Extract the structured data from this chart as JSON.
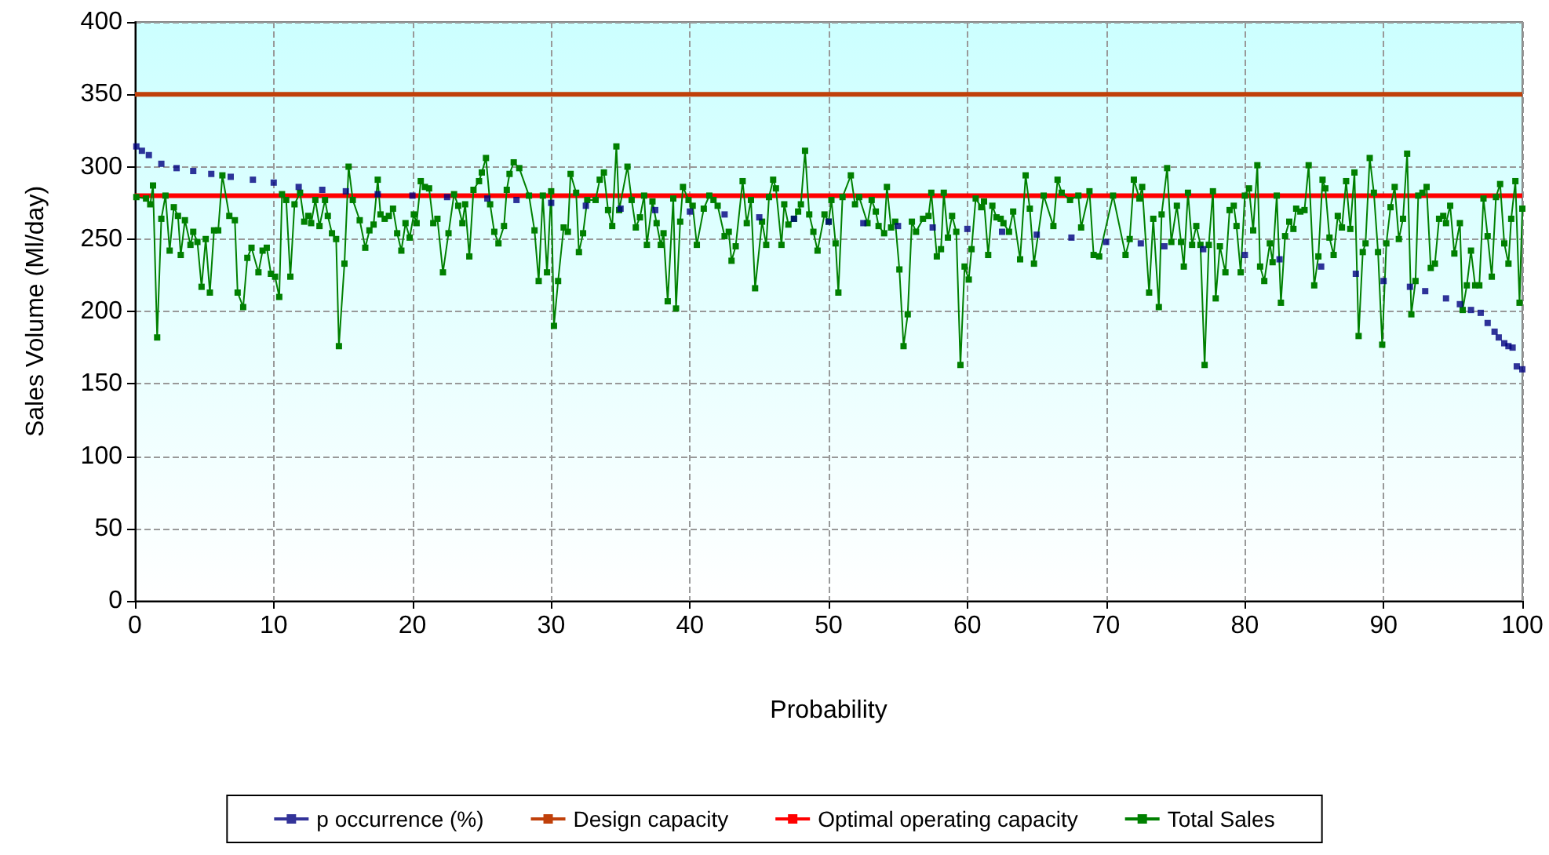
{
  "chart_data": {
    "type": "line",
    "xlabel": "Probability",
    "ylabel": "Sales Volume (Ml/day)",
    "xlim": [
      0,
      100
    ],
    "xticks": [
      0,
      10,
      20,
      30,
      40,
      50,
      60,
      70,
      80,
      90,
      100
    ],
    "ylim": [
      0,
      400
    ],
    "yticks": [
      0,
      50,
      100,
      150,
      200,
      250,
      300,
      350,
      400
    ],
    "grid": true,
    "legend": "bottom",
    "marker": "square",
    "line_style": "solid",
    "series": [
      {
        "name": "p occurrence (%)",
        "type": "scatter",
        "color": "#000080",
        "x": [
          0.1,
          0.5,
          1,
          1.9,
          3,
          4.2,
          5.5,
          6.9,
          8.5,
          10,
          11.8,
          13.5,
          15.2,
          17.5,
          20,
          22.5,
          25.4,
          27.5,
          30,
          32.5,
          35,
          37.5,
          40,
          42.5,
          45,
          47.5,
          50,
          52.5,
          55,
          57.5,
          60,
          62.5,
          65,
          67.5,
          70,
          72.5,
          74.2,
          77,
          80,
          82.5,
          85.5,
          88,
          90,
          91.9,
          93,
          94.5,
          95.5,
          96.3,
          97,
          97.5,
          98,
          98.3,
          98.7,
          99,
          99.3,
          99.6,
          100
        ],
        "values": [
          314,
          311,
          308,
          302,
          299,
          297,
          295,
          293,
          291,
          289,
          286,
          284,
          283,
          281,
          280,
          279,
          278,
          277,
          275,
          273,
          271,
          270,
          269,
          267,
          265,
          264,
          262,
          261,
          259,
          258,
          257,
          255,
          253,
          251,
          248,
          247,
          245,
          243,
          239,
          236,
          231,
          226,
          221,
          217,
          214,
          209,
          205,
          201,
          199,
          192,
          186,
          182,
          178,
          176,
          175,
          162,
          160
        ]
      },
      {
        "name": "Total Sales",
        "color": "#008000",
        "x": [
          0.1,
          0.8,
          1.1,
          1.3,
          1.6,
          1.9,
          2.2,
          2.5,
          2.8,
          3.1,
          3.3,
          3.6,
          4,
          4.2,
          4.5,
          4.8,
          5.1,
          5.4,
          5.7,
          6,
          6.3,
          6.8,
          7.2,
          7.4,
          7.8,
          8.1,
          8.4,
          8.9,
          9.2,
          9.5,
          9.8,
          10.1,
          10.4,
          10.6,
          10.9,
          11.2,
          11.5,
          11.9,
          12.2,
          12.5,
          12.7,
          13,
          13.3,
          13.7,
          13.9,
          14.2,
          14.5,
          14.7,
          15.1,
          15.4,
          15.7,
          16.2,
          16.6,
          16.9,
          17.2,
          17.5,
          17.7,
          18,
          18.3,
          18.6,
          18.9,
          19.2,
          19.5,
          19.8,
          20.1,
          20.3,
          20.6,
          20.9,
          21.2,
          21.5,
          21.8,
          22.2,
          22.6,
          23,
          23.3,
          23.6,
          23.8,
          24.1,
          24.4,
          24.8,
          25,
          25.3,
          25.6,
          25.9,
          26.2,
          26.6,
          26.8,
          27,
          27.3,
          27.7,
          28.4,
          28.8,
          29.1,
          29.4,
          29.7,
          30,
          30.2,
          30.5,
          30.9,
          31.2,
          31.4,
          31.8,
          32,
          32.3,
          32.6,
          33.2,
          33.5,
          33.8,
          34.1,
          34.4,
          34.7,
          34.9,
          35.5,
          35.8,
          36.1,
          36.4,
          36.7,
          36.9,
          37.3,
          37.6,
          37.9,
          38.1,
          38.4,
          38.8,
          39,
          39.3,
          39.5,
          39.9,
          40.2,
          40.5,
          41,
          41.4,
          41.7,
          42,
          42.5,
          42.8,
          43,
          43.3,
          43.8,
          44.1,
          44.4,
          44.7,
          45.2,
          45.5,
          45.7,
          46,
          46.2,
          46.6,
          46.8,
          47.1,
          47.5,
          47.8,
          48,
          48.3,
          48.6,
          48.9,
          49.2,
          49.7,
          50,
          50.2,
          50.5,
          50.7,
          51,
          51.6,
          51.9,
          52.2,
          52.8,
          53.1,
          53.4,
          53.6,
          54,
          54.2,
          54.5,
          54.8,
          55.1,
          55.4,
          55.7,
          56,
          56.3,
          56.8,
          57.2,
          57.4,
          57.8,
          58.1,
          58.3,
          58.6,
          58.9,
          59.2,
          59.5,
          59.8,
          60.1,
          60.3,
          60.6,
          61,
          61.2,
          61.5,
          61.8,
          62.1,
          62.4,
          62.6,
          63,
          63.3,
          63.8,
          64.2,
          64.5,
          64.8,
          65.5,
          66.2,
          66.5,
          66.8,
          67.4,
          68,
          68.2,
          68.8,
          69.1,
          69.5,
          70.5,
          71.4,
          71.7,
          72,
          72.4,
          72.6,
          73.1,
          73.4,
          73.8,
          74,
          74.4,
          74.7,
          75.1,
          75.4,
          75.6,
          75.9,
          76.2,
          76.5,
          76.8,
          77.1,
          77.4,
          77.7,
          77.9,
          78.2,
          78.6,
          78.9,
          79.2,
          79.4,
          79.7,
          80,
          80.3,
          80.6,
          80.9,
          81.1,
          81.4,
          81.8,
          82,
          82.3,
          82.6,
          82.9,
          83.2,
          83.5,
          83.7,
          84,
          84.3,
          84.6,
          85,
          85.3,
          85.6,
          85.8,
          86.1,
          86.4,
          86.7,
          87,
          87.3,
          87.6,
          87.9,
          88.2,
          88.5,
          88.7,
          89,
          89.3,
          89.6,
          89.9,
          90.2,
          90.5,
          90.8,
          91.1,
          91.4,
          91.7,
          92,
          92.3,
          92.5,
          92.8,
          93.1,
          93.4,
          93.7,
          94,
          94.3,
          94.5,
          94.8,
          95.1,
          95.5,
          95.7,
          96,
          96.3,
          96.6,
          96.9,
          97.2,
          97.5,
          97.8,
          98.1,
          98.4,
          98.7,
          99,
          99.2,
          99.5,
          99.8,
          100
        ],
        "values": [
          279,
          278,
          274,
          287,
          182,
          264,
          280,
          242,
          272,
          266,
          239,
          263,
          246,
          255,
          248,
          217,
          250,
          213,
          256,
          256,
          294,
          266,
          263,
          213,
          203,
          237,
          244,
          227,
          242,
          244,
          226,
          224,
          210,
          281,
          277,
          224,
          274,
          282,
          262,
          266,
          261,
          277,
          259,
          277,
          266,
          254,
          250,
          176,
          233,
          300,
          277,
          263,
          244,
          256,
          260,
          291,
          267,
          264,
          266,
          271,
          254,
          242,
          261,
          251,
          267,
          261,
          290,
          286,
          285,
          261,
          264,
          227,
          254,
          281,
          273,
          261,
          274,
          238,
          284,
          290,
          296,
          306,
          274,
          255,
          247,
          259,
          284,
          295,
          303,
          299,
          280,
          256,
          221,
          280,
          227,
          283,
          190,
          221,
          258,
          255,
          295,
          282,
          241,
          254,
          277,
          277,
          291,
          296,
          270,
          259,
          314,
          270,
          300,
          277,
          258,
          265,
          280,
          246,
          276,
          261,
          246,
          254,
          207,
          278,
          202,
          262,
          286,
          277,
          273,
          246,
          271,
          280,
          277,
          273,
          252,
          255,
          235,
          245,
          290,
          261,
          277,
          216,
          262,
          246,
          279,
          291,
          285,
          246,
          274,
          260,
          264,
          269,
          274,
          311,
          267,
          255,
          242,
          267,
          262,
          277,
          247,
          213,
          279,
          294,
          274,
          279,
          261,
          277,
          269,
          259,
          254,
          286,
          258,
          262,
          229,
          176,
          198,
          262,
          255,
          264,
          266,
          282,
          238,
          243,
          282,
          251,
          266,
          255,
          163,
          231,
          222,
          243,
          278,
          272,
          276,
          239,
          273,
          265,
          264,
          261,
          255,
          269,
          236,
          294,
          271,
          233,
          280,
          259,
          291,
          282,
          277,
          280,
          258,
          283,
          239,
          238,
          280,
          239,
          250,
          291,
          278,
          286,
          213,
          264,
          203,
          267,
          299,
          248,
          273,
          248,
          231,
          282,
          246,
          259,
          246,
          163,
          246,
          283,
          209,
          245,
          227,
          270,
          273,
          259,
          227,
          280,
          285,
          256,
          301,
          231,
          221,
          247,
          234,
          280,
          206,
          252,
          262,
          257,
          271,
          269,
          270,
          301,
          218,
          238,
          291,
          285,
          251,
          239,
          266,
          258,
          290,
          257,
          296,
          183,
          241,
          247,
          306,
          282,
          241,
          177,
          247,
          272,
          286,
          250,
          264,
          309,
          198,
          221,
          280,
          282,
          286,
          230,
          233,
          264,
          266,
          261,
          273,
          240,
          261,
          201,
          218,
          242,
          218,
          218,
          278,
          252,
          224,
          279,
          288,
          247,
          233,
          264,
          290,
          206,
          271
        ]
      }
    ],
    "ref_lines": [
      {
        "axis": "y",
        "value": 350,
        "label": "Design capacity",
        "color": "#c0400a"
      },
      {
        "axis": "y",
        "value": 280,
        "label": "Optimal operating capacity",
        "color": "#ff0000"
      }
    ]
  }
}
